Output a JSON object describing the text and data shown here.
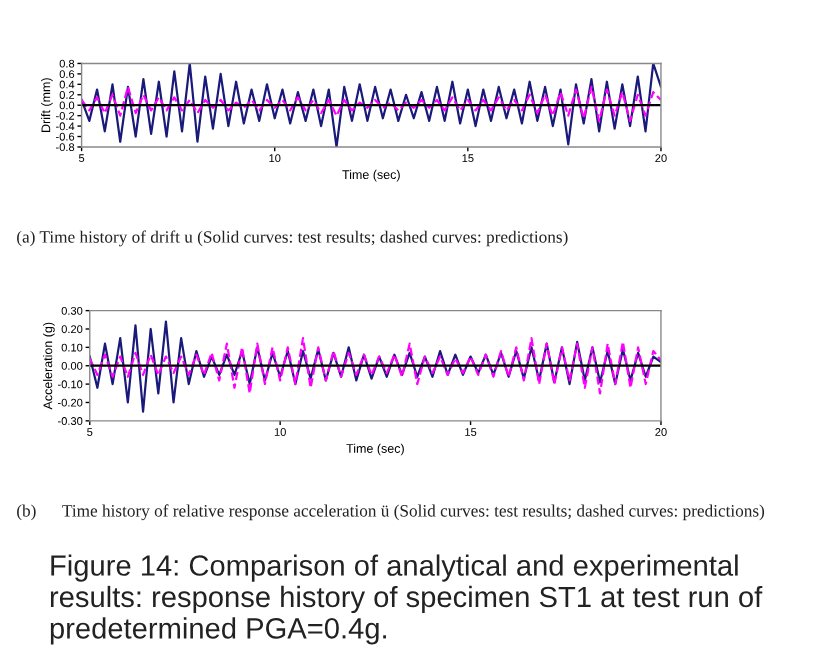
{
  "chart_data": [
    {
      "type": "line",
      "xlabel": "Time (sec)",
      "ylabel": "Drift (mm)",
      "xlim": [
        5,
        20
      ],
      "xticks": [
        5,
        10,
        15,
        20
      ],
      "ylim": [
        -0.8,
        0.8
      ],
      "yticks": [
        {
          "value": -0.8,
          "label": "-0.8"
        },
        {
          "value": -0.6,
          "label": "-0.6"
        },
        {
          "value": -0.4,
          "label": "-0.4"
        },
        {
          "value": -0.2,
          "label": "-0.2"
        },
        {
          "value": 0,
          "label": "0.0"
        },
        {
          "value": 0.2,
          "label": "0.2"
        },
        {
          "value": 0.4,
          "label": "0.4"
        },
        {
          "value": 0.6,
          "label": "0.6"
        },
        {
          "value": 0.8,
          "label": "0.8"
        }
      ],
      "x": [
        5,
        5.2,
        5.4,
        5.6,
        5.8,
        6,
        6.2,
        6.4,
        6.6,
        6.8,
        7,
        7.2,
        7.4,
        7.6,
        7.8,
        8,
        8.2,
        8.4,
        8.6,
        8.8,
        9,
        9.2,
        9.4,
        9.6,
        9.8,
        10,
        10.2,
        10.4,
        10.6,
        10.8,
        11,
        11.2,
        11.4,
        11.6,
        11.8,
        12,
        12.2,
        12.4,
        12.6,
        12.8,
        13,
        13.2,
        13.4,
        13.6,
        13.8,
        14,
        14.2,
        14.4,
        14.6,
        14.8,
        15,
        15.2,
        15.4,
        15.6,
        15.8,
        16,
        16.2,
        16.4,
        16.6,
        16.8,
        17,
        17.2,
        17.4,
        17.6,
        17.8,
        18,
        18.2,
        18.4,
        18.6,
        18.8,
        19,
        19.2,
        19.4,
        19.6,
        19.8,
        20
      ],
      "series": [
        {
          "color": "#1a1a7a",
          "line_style": "solid",
          "values": [
            0.1,
            -0.3,
            0.3,
            -0.5,
            0.4,
            -0.7,
            0.35,
            -0.6,
            0.5,
            -0.55,
            0.45,
            -0.6,
            0.65,
            -0.5,
            0.8,
            -0.7,
            0.55,
            -0.45,
            0.6,
            -0.4,
            0.45,
            -0.35,
            0.3,
            -0.3,
            0.4,
            -0.25,
            0.3,
            -0.35,
            0.25,
            -0.3,
            0.3,
            -0.4,
            0.3,
            -0.8,
            0.35,
            -0.3,
            0.4,
            -0.3,
            0.35,
            -0.25,
            0.3,
            -0.3,
            0.2,
            -0.25,
            0.25,
            -0.3,
            0.35,
            -0.3,
            0.45,
            -0.35,
            0.3,
            -0.4,
            0.3,
            -0.3,
            0.35,
            -0.25,
            0.3,
            -0.35,
            0.45,
            -0.3,
            0.35,
            -0.4,
            0.3,
            -0.75,
            0.4,
            -0.35,
            0.5,
            -0.5,
            0.45,
            -0.45,
            0.4,
            -0.4,
            0.55,
            -0.5,
            0.8,
            0.35
          ]
        },
        {
          "color": "#ff00ff",
          "line_style": "dashed",
          "values": [
            0.1,
            -0.1,
            0.15,
            -0.15,
            0.2,
            -0.2,
            0.35,
            -0.15,
            0.2,
            -0.1,
            0.15,
            -0.1,
            0.15,
            -0.1,
            0.1,
            -0.15,
            0.1,
            -0.05,
            0.1,
            -0.1,
            0.05,
            -0.05,
            0.1,
            -0.1,
            0.1,
            -0.05,
            0.1,
            -0.1,
            0.15,
            -0.1,
            0.1,
            -0.15,
            0.1,
            -0.2,
            0.1,
            -0.1,
            0.05,
            -0.05,
            0.1,
            -0.05,
            0.05,
            -0.1,
            0.05,
            -0.05,
            0.1,
            -0.05,
            0.1,
            -0.1,
            0.15,
            -0.1,
            0.1,
            -0.1,
            0.1,
            -0.1,
            0.15,
            -0.1,
            0.1,
            -0.1,
            0.2,
            -0.15,
            0.2,
            -0.2,
            0.25,
            -0.2,
            0.3,
            -0.25,
            0.35,
            -0.3,
            0.3,
            -0.2,
            0.25,
            -0.3,
            0.2,
            -0.2,
            0.25,
            0.1
          ]
        }
      ],
      "ref_lines": [
        {
          "axis": "y",
          "value": 0,
          "color": "#000000"
        }
      ],
      "annotations": [
        "(a) Time history of drift u (Solid curves: test results; dashed curves: predictions)"
      ]
    },
    {
      "type": "line",
      "xlabel": "Time (sec)",
      "ylabel": "Acceleration (g)",
      "xlim": [
        5,
        20
      ],
      "xticks": [
        5,
        10,
        15,
        20
      ],
      "ylim": [
        -0.3,
        0.3
      ],
      "yticks": [
        {
          "value": -0.3,
          "label": "-0.30"
        },
        {
          "value": -0.2,
          "label": "-0.20"
        },
        {
          "value": -0.1,
          "label": "-0.10"
        },
        {
          "value": 0,
          "label": "0.00"
        },
        {
          "value": 0.1,
          "label": "0.10"
        },
        {
          "value": 0.2,
          "label": "0.20"
        },
        {
          "value": 0.3,
          "label": "0.30"
        }
      ],
      "x": [
        5,
        5.2,
        5.4,
        5.6,
        5.8,
        6,
        6.2,
        6.4,
        6.6,
        6.8,
        7,
        7.2,
        7.4,
        7.6,
        7.8,
        8,
        8.2,
        8.4,
        8.6,
        8.8,
        9,
        9.2,
        9.4,
        9.6,
        9.8,
        10,
        10.2,
        10.4,
        10.6,
        10.8,
        11,
        11.2,
        11.4,
        11.6,
        11.8,
        12,
        12.2,
        12.4,
        12.6,
        12.8,
        13,
        13.2,
        13.4,
        13.6,
        13.8,
        14,
        14.2,
        14.4,
        14.6,
        14.8,
        15,
        15.2,
        15.4,
        15.6,
        15.8,
        16,
        16.2,
        16.4,
        16.6,
        16.8,
        17,
        17.2,
        17.4,
        17.6,
        17.8,
        18,
        18.2,
        18.4,
        18.6,
        18.8,
        19,
        19.2,
        19.4,
        19.6,
        19.8,
        20
      ],
      "series": [
        {
          "color": "#1a1a7a",
          "line_style": "solid",
          "values": [
            0.05,
            -0.12,
            0.12,
            -0.1,
            0.15,
            -0.2,
            0.22,
            -0.25,
            0.2,
            -0.15,
            0.24,
            -0.2,
            0.15,
            -0.1,
            0.08,
            -0.06,
            0.05,
            -0.05,
            0.06,
            -0.05,
            0.08,
            -0.1,
            0.1,
            -0.08,
            0.07,
            -0.06,
            0.08,
            -0.1,
            0.08,
            -0.07,
            0.09,
            -0.08,
            0.07,
            -0.06,
            0.1,
            -0.08,
            0.06,
            -0.07,
            0.05,
            -0.06,
            0.06,
            -0.05,
            0.07,
            -0.06,
            0.05,
            -0.06,
            0.08,
            -0.05,
            0.06,
            -0.05,
            0.05,
            -0.04,
            0.06,
            -0.05,
            0.07,
            -0.06,
            0.08,
            -0.07,
            0.1,
            -0.08,
            0.12,
            -0.09,
            0.1,
            -0.1,
            0.13,
            -0.08,
            0.1,
            -0.09,
            0.08,
            -0.1,
            0.09,
            -0.08,
            0.07,
            -0.06,
            0.05,
            0.02
          ]
        },
        {
          "color": "#ff00ff",
          "line_style": "dashed",
          "values": [
            0.04,
            -0.05,
            0.06,
            -0.06,
            0.05,
            -0.06,
            0.07,
            -0.05,
            0.06,
            -0.05,
            0.05,
            -0.04,
            0.05,
            -0.05,
            0.06,
            -0.05,
            0.07,
            -0.08,
            0.12,
            -0.12,
            0.1,
            -0.15,
            0.12,
            -0.1,
            0.1,
            -0.08,
            0.1,
            -0.1,
            0.15,
            -0.12,
            0.1,
            -0.08,
            0.08,
            -0.06,
            0.07,
            -0.05,
            0.06,
            -0.05,
            0.05,
            -0.04,
            0.06,
            -0.06,
            0.12,
            -0.1,
            0.05,
            -0.04,
            0.05,
            -0.05,
            0.04,
            -0.04,
            0.05,
            -0.05,
            0.06,
            -0.06,
            0.08,
            -0.06,
            0.1,
            -0.08,
            0.15,
            -0.1,
            0.12,
            -0.1,
            0.1,
            -0.08,
            0.12,
            -0.12,
            0.1,
            -0.15,
            0.12,
            -0.1,
            0.13,
            -0.12,
            0.1,
            -0.1,
            0.08,
            0.03
          ]
        }
      ],
      "ref_lines": [
        {
          "axis": "y",
          "value": 0,
          "color": "#000000"
        }
      ],
      "annotations": [
        "(b)      Time history of relative response acceleration ü (Solid curves: test results; dashed curves: predictions)",
        "Figure 14: Comparison of analytical and experimental results: response history of specimen ST1 at test run of predetermined PGA=0.4g."
      ]
    }
  ]
}
